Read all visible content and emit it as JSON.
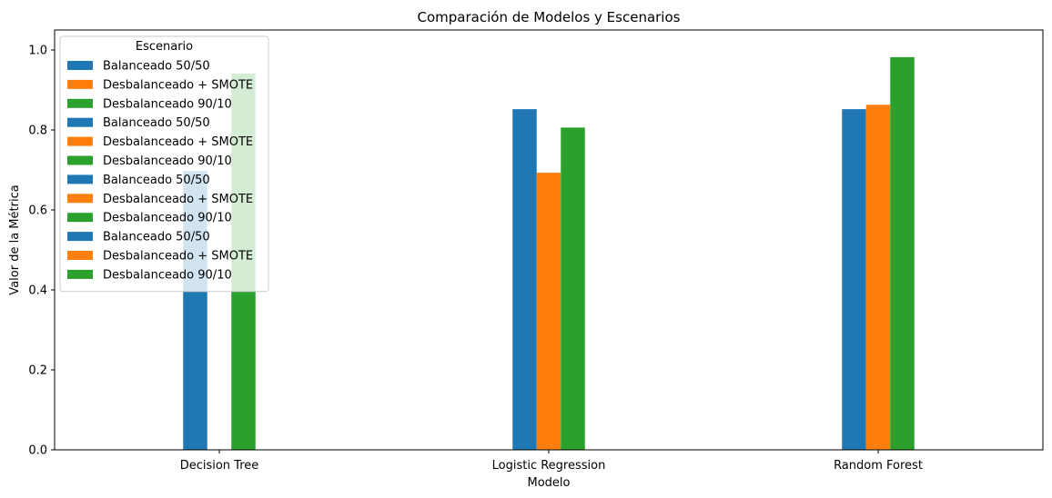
{
  "chart_data": {
    "type": "bar",
    "title": "Comparación de Modelos y Escenarios",
    "xlabel": "Modelo",
    "ylabel": "Valor de la Métrica",
    "categories": [
      "Decision Tree",
      "Logistic Regression",
      "Random Forest"
    ],
    "ylim": [
      0,
      1.05
    ],
    "yticks": [
      "0.0",
      "0.2",
      "0.4",
      "0.6",
      "0.8",
      "1.0"
    ],
    "ytick_values": [
      0.0,
      0.2,
      0.4,
      0.6,
      0.8,
      1.0
    ],
    "grid": false,
    "series": [
      {
        "name": "Balanceado 50/50",
        "color": "#1f77b4",
        "values": [
          0.697,
          0.852,
          0.852
        ]
      },
      {
        "name": "Desbalanceado + SMOTE",
        "color": "#ff7f0e",
        "values": [
          null,
          0.693,
          0.863
        ]
      },
      {
        "name": "Desbalanceado 90/10",
        "color": "#2ca02c",
        "values": [
          0.941,
          0.806,
          0.982
        ]
      }
    ],
    "legend": {
      "title": "Escenario",
      "placement": "upper left",
      "entries": [
        {
          "label": "Balanceado 50/50",
          "color": "#1f77b4"
        },
        {
          "label": "Desbalanceado + SMOTE",
          "color": "#ff7f0e"
        },
        {
          "label": "Desbalanceado 90/10",
          "color": "#2ca02c"
        },
        {
          "label": "Balanceado 50/50",
          "color": "#1f77b4"
        },
        {
          "label": "Desbalanceado + SMOTE",
          "color": "#ff7f0e"
        },
        {
          "label": "Desbalanceado 90/10",
          "color": "#2ca02c"
        },
        {
          "label": "Balanceado 50/50",
          "color": "#1f77b4"
        },
        {
          "label": "Desbalanceado + SMOTE",
          "color": "#ff7f0e"
        },
        {
          "label": "Desbalanceado 90/10",
          "color": "#2ca02c"
        },
        {
          "label": "Balanceado 50/50",
          "color": "#1f77b4"
        },
        {
          "label": "Desbalanceado + SMOTE",
          "color": "#ff7f0e"
        },
        {
          "label": "Desbalanceado 90/10",
          "color": "#2ca02c"
        }
      ]
    }
  }
}
